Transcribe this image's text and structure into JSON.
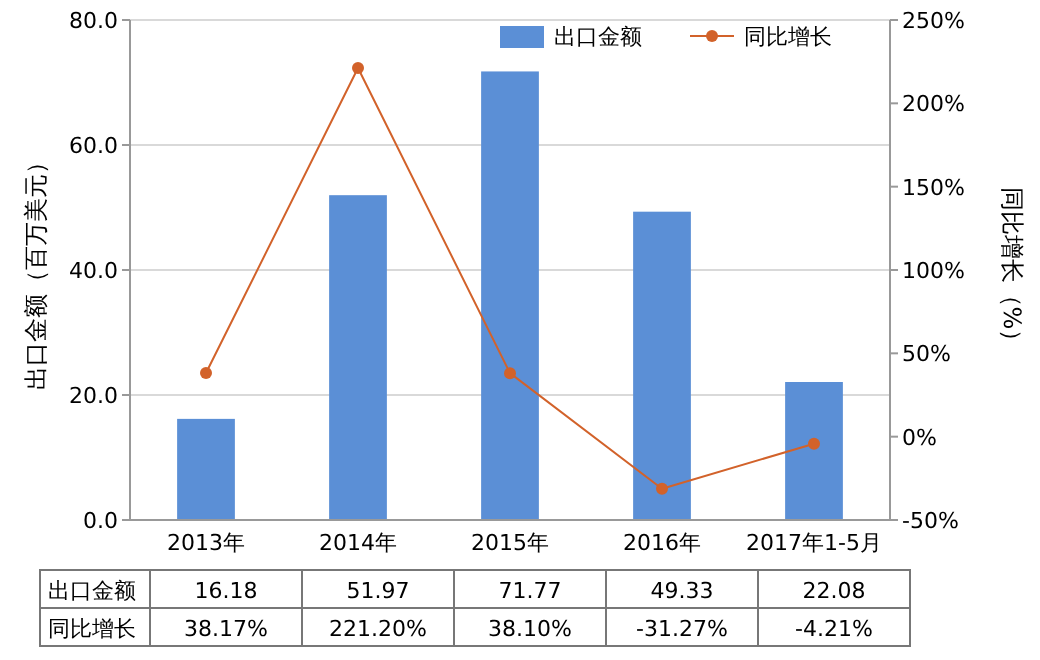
{
  "chart_data": {
    "type": "bar",
    "ylabel": "出口金额（百万美元）",
    "y2label": "同比增长（%）",
    "categories": [
      "2013年",
      "2014年",
      "2015年",
      "2016年",
      "2017年1-5月"
    ],
    "series": [
      {
        "name": "出口金额",
        "color": "#5b8fd6",
        "values": [
          16.18,
          51.97,
          71.77,
          49.33,
          22.08
        ],
        "value_labels": [
          "16.18",
          "51.97",
          "71.77",
          "49.33",
          "22.08"
        ]
      },
      {
        "name": "同比增长",
        "type": "line",
        "axis": "y2",
        "color": "#d2622a",
        "marker": "circle",
        "values": [
          38.17,
          221.2,
          38.1,
          -31.27,
          -4.21
        ],
        "value_labels": [
          "38.17%",
          "221.20%",
          "38.10%",
          "-31.27%",
          "-4.21%"
        ]
      }
    ],
    "ylim": [
      0,
      80
    ],
    "yticks": [
      {
        "value": 0,
        "label": "0.0"
      },
      {
        "value": 20,
        "label": "20.0"
      },
      {
        "value": 40,
        "label": "40.0"
      },
      {
        "value": 60,
        "label": "60.0"
      },
      {
        "value": 80,
        "label": "80.0"
      }
    ],
    "y2lim": [
      -50,
      250
    ],
    "y2ticks": [
      {
        "value": -50,
        "label": "-50%"
      },
      {
        "value": 0,
        "label": "0%"
      },
      {
        "value": 50,
        "label": "50%"
      },
      {
        "value": 100,
        "label": "100%"
      },
      {
        "value": 150,
        "label": "150%"
      },
      {
        "value": 200,
        "label": "200%"
      },
      {
        "value": 250,
        "label": "250%"
      }
    ],
    "grid": "y",
    "legend": "top right"
  }
}
